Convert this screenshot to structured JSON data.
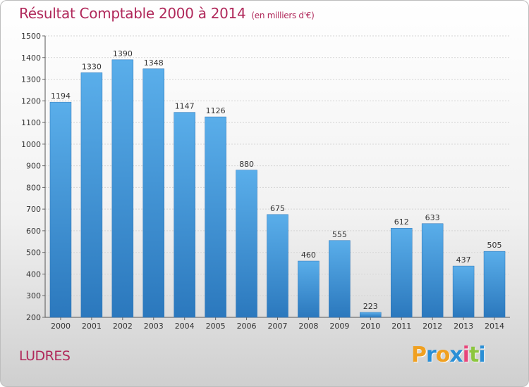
{
  "title": "Résultat Comptable 2000 à 2014",
  "subtitle": "(en milliers d'€)",
  "place": "LUDRES",
  "logo": {
    "letters": [
      "P",
      "r",
      "o",
      "x",
      "i",
      "t",
      "i"
    ],
    "colors": [
      "#f0a020",
      "#2a8fd6",
      "#f0a020",
      "#2a8fd6",
      "#e8457a",
      "#8cc63f",
      "#2a8fd6"
    ]
  },
  "colors": {
    "bar": "#4a9fe2",
    "bar_dark": "#2f7fc7",
    "title": "#b0285a"
  },
  "chart_data": {
    "type": "bar",
    "title": "Résultat Comptable 2000 à 2014",
    "subtitle": "(en milliers d'€)",
    "categories": [
      "2000",
      "2001",
      "2002",
      "2003",
      "2004",
      "2005",
      "2006",
      "2007",
      "2008",
      "2009",
      "2010",
      "2011",
      "2012",
      "2013",
      "2014"
    ],
    "values": [
      1194,
      1330,
      1390,
      1348,
      1147,
      1126,
      880,
      675,
      460,
      555,
      223,
      612,
      633,
      437,
      505
    ],
    "ylim": [
      200,
      1500
    ],
    "yticks": [
      200,
      300,
      400,
      500,
      600,
      700,
      800,
      900,
      1000,
      1100,
      1200,
      1300,
      1400,
      1500
    ],
    "grid": true
  }
}
